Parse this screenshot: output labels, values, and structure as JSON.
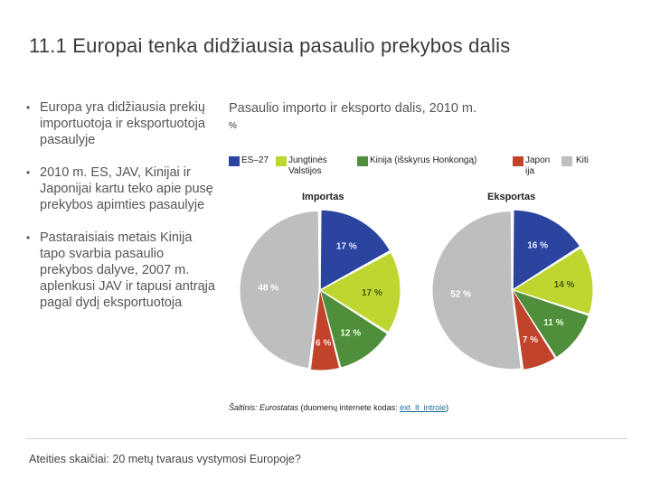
{
  "slide": {
    "title": "11.1 Europai tenka didžiausia pasaulio prekybos dalis",
    "bullets": [
      "Europa yra didžiausia prekių importuotoja ir eksportuotoja pasaulyje",
      "2010 m. ES, JAV, Kinijai ir Japonijai kartu teko apie pusę prekybos apimties pasaulyje",
      "Pastaraisiais metais Kinija tapo svarbia pasaulio prekybos dalyve, 2007 m. aplenkusi JAV ir tapusi antrąja pagal dydį eksportuotoja"
    ],
    "footer": "Ateities skaičiai: 20 metų tvaraus vystymosi Europoje?"
  },
  "source": {
    "prefix": "Šaltinis: ",
    "name": "Eurostatas",
    "middle": " (duomenų internete kodas: ",
    "code": "ext_lt_introle",
    "suffix": ")"
  },
  "chart_data": {
    "type": "pie",
    "title": "Pasaulio importo ir eksporto dalis, 2010 m.",
    "unit": "%",
    "legend": [
      {
        "name": "ES–27",
        "color": "#2b44a0"
      },
      {
        "name": "Jungtinės Valstijos",
        "color": "#bfd630"
      },
      {
        "name": "Kinija (išskyrus Honkongą)",
        "color": "#4f8f3c"
      },
      {
        "name": "Japon ija",
        "color": "#c1432c"
      },
      {
        "name": "Kiti",
        "color": "#bcbec0"
      }
    ],
    "pies": [
      {
        "title": "Importas",
        "values": [
          17,
          17,
          12,
          6,
          48
        ],
        "labels": [
          "17 %",
          "17 %",
          "12 %",
          "6 %",
          "48 %"
        ]
      },
      {
        "title": "Eksportas",
        "values": [
          16,
          14,
          11,
          7,
          52
        ],
        "labels": [
          "16 %",
          "14 %",
          "11 %",
          "7 %",
          "52 %"
        ]
      }
    ]
  }
}
